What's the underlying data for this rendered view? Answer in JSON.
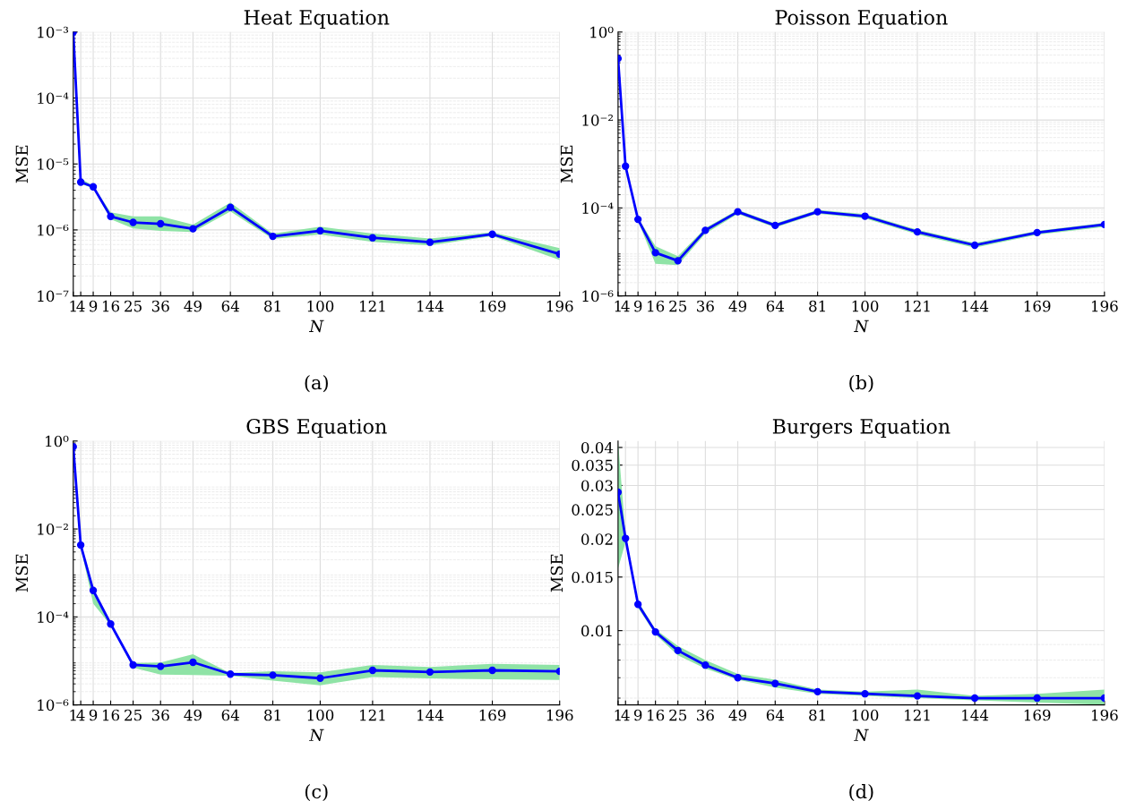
{
  "chart_data": [
    {
      "type": "line",
      "title": "Heat Equation",
      "xlabel": "N",
      "ylabel": "MSE",
      "annotations": [
        "(a)"
      ],
      "log": "y",
      "grid": true,
      "marker": "circle",
      "line_style": "solid",
      "x": [
        1,
        4,
        9,
        16,
        25,
        36,
        49,
        64,
        81,
        100,
        121,
        144,
        169,
        196
      ],
      "xlim": [
        1,
        196
      ],
      "xticks": [
        1,
        4,
        9,
        16,
        25,
        36,
        49,
        64,
        81,
        100,
        121,
        144,
        169,
        196
      ],
      "ylim": [
        1e-07,
        0.001
      ],
      "yticks": [
        {
          "value": 1e-07,
          "label": "10⁻⁷"
        },
        {
          "value": 1e-06,
          "label": "10⁻⁶"
        },
        {
          "value": 1e-05,
          "label": "10⁻⁵"
        },
        {
          "value": 0.0001,
          "label": "10⁻⁴"
        },
        {
          "value": 0.001,
          "label": "10⁻³"
        }
      ],
      "series": [
        {
          "color": "#0000ff",
          "values": [
            0.001,
            5.3e-06,
            4.5e-06,
            1.6e-06,
            1.3e-06,
            1.24e-06,
            1.04e-06,
            2.2e-06,
            8e-07,
            9.7e-07,
            7.6e-07,
            6.5e-07,
            8.6e-07,
            4.3e-07
          ],
          "lower": [
            0.00095,
            5e-06,
            4.3e-06,
            1.45e-06,
            1.05e-06,
            9.7e-07,
            9.3e-07,
            1.9e-06,
            7.3e-07,
            8.5e-07,
            6.6e-07,
            5.8e-07,
            8.1e-07,
            3.5e-07
          ],
          "upper": [
            0.001,
            6e-06,
            4.7e-06,
            1.85e-06,
            1.6e-06,
            1.6e-06,
            1.2e-06,
            2.6e-06,
            8.8e-07,
            1.12e-06,
            8.8e-07,
            7.4e-07,
            9.2e-07,
            5.3e-07
          ]
        }
      ]
    },
    {
      "type": "line",
      "title": "Poisson Equation",
      "xlabel": "N",
      "ylabel": "MSE",
      "annotations": [
        "(b)"
      ],
      "log": "y",
      "grid": true,
      "marker": "circle",
      "line_style": "solid",
      "x": [
        1,
        4,
        9,
        16,
        25,
        36,
        49,
        64,
        81,
        100,
        121,
        144,
        169,
        196
      ],
      "xlim": [
        1,
        196
      ],
      "xticks": [
        1,
        4,
        9,
        16,
        25,
        36,
        49,
        64,
        81,
        100,
        121,
        144,
        169,
        196
      ],
      "ylim": [
        1e-06,
        1
      ],
      "yticks": [
        {
          "value": 1e-06,
          "label": "10⁻⁶"
        },
        {
          "value": 0.0001,
          "label": "10⁻⁴"
        },
        {
          "value": 0.01,
          "label": "10⁻²"
        },
        {
          "value": 1,
          "label": "10⁰"
        }
      ],
      "series": [
        {
          "color": "#0000ff",
          "values": [
            0.25,
            0.00089,
            5.5e-05,
            9.6e-06,
            6.3e-06,
            3.1e-05,
            8.2e-05,
            4e-05,
            8.2e-05,
            6.5e-05,
            2.85e-05,
            1.42e-05,
            2.75e-05,
            4.2e-05
          ],
          "lower": [
            0.23,
            0.0008,
            5e-05,
            5.4e-06,
            5e-06,
            2.6e-05,
            7.3e-05,
            3.6e-05,
            7.4e-05,
            5.8e-05,
            2.5e-05,
            1.25e-05,
            2.45e-05,
            3.7e-05
          ],
          "upper": [
            0.27,
            0.00098,
            6e-05,
            1.35e-05,
            8e-06,
            3.5e-05,
            9e-05,
            4.4e-05,
            9e-05,
            7.2e-05,
            3.2e-05,
            1.6e-05,
            3e-05,
            4.6e-05
          ]
        }
      ]
    },
    {
      "type": "line",
      "title": "GBS Equation",
      "xlabel": "N",
      "ylabel": "MSE",
      "annotations": [
        "(c)"
      ],
      "log": "y",
      "grid": true,
      "marker": "circle",
      "line_style": "solid",
      "x": [
        1,
        4,
        9,
        16,
        25,
        36,
        49,
        64,
        81,
        100,
        121,
        144,
        169,
        196
      ],
      "xlim": [
        1,
        196
      ],
      "xticks": [
        1,
        4,
        9,
        16,
        25,
        36,
        49,
        64,
        81,
        100,
        121,
        144,
        169,
        196
      ],
      "ylim": [
        1e-06,
        1
      ],
      "yticks": [
        {
          "value": 1e-06,
          "label": "10⁻⁶"
        },
        {
          "value": 0.0001,
          "label": "10⁻⁴"
        },
        {
          "value": 0.01,
          "label": "10⁻²"
        },
        {
          "value": 1,
          "label": "10⁰"
        }
      ],
      "series": [
        {
          "color": "#0000ff",
          "values": [
            0.74,
            0.0043,
            0.0004,
            6.9e-05,
            8.1e-06,
            7.5e-06,
            9.3e-06,
            5e-06,
            4.75e-06,
            4.05e-06,
            6.1e-06,
            5.6e-06,
            6.1e-06,
            5.8e-06
          ],
          "lower": [
            0.7,
            0.0038,
            0.0002,
            6.4e-05,
            7e-06,
            4.9e-06,
            4.75e-06,
            4.6e-06,
            3.55e-06,
            2.8e-06,
            4.3e-06,
            4e-06,
            3.8e-06,
            3.7e-06
          ],
          "upper": [
            0.8,
            0.0045,
            0.00042,
            7.3e-05,
            9e-06,
            9.2e-06,
            1.42e-05,
            5.3e-06,
            5.8e-06,
            5.5e-06,
            8.1e-06,
            7.3e-06,
            8.6e-06,
            8.1e-06
          ]
        }
      ]
    },
    {
      "type": "line",
      "title": "Burgers Equation",
      "xlabel": "N",
      "ylabel": "MSE",
      "annotations": [
        "(d)"
      ],
      "log": "y",
      "grid": true,
      "marker": "circle",
      "line_style": "solid",
      "x": [
        1,
        4,
        9,
        16,
        25,
        36,
        49,
        64,
        81,
        100,
        121,
        144,
        169,
        196
      ],
      "xlim": [
        1,
        196
      ],
      "xticks": [
        1,
        4,
        9,
        16,
        25,
        36,
        49,
        64,
        81,
        100,
        121,
        144,
        169,
        196
      ],
      "ylim": [
        0.0057,
        0.042
      ],
      "yticks": [
        0.01,
        0.015,
        0.02,
        0.025,
        0.03,
        0.035,
        0.04
      ],
      "series": [
        {
          "color": "#0000ff",
          "values": [
            0.0285,
            0.0201,
            0.0122,
            0.0099,
            0.0086,
            0.0077,
            0.007,
            0.0067,
            0.0063,
            0.0062,
            0.0061,
            0.006,
            0.006,
            0.006
          ],
          "lower": [
            0.016,
            0.0195,
            0.0119,
            0.0097,
            0.0083,
            0.0075,
            0.0069,
            0.0065,
            0.0062,
            0.0061,
            0.006,
            0.0059,
            0.0058,
            0.0057
          ],
          "upper": [
            0.042,
            0.0207,
            0.0125,
            0.0101,
            0.0089,
            0.008,
            0.0072,
            0.0069,
            0.0064,
            0.0063,
            0.0064,
            0.0061,
            0.0062,
            0.0064
          ]
        }
      ]
    }
  ]
}
